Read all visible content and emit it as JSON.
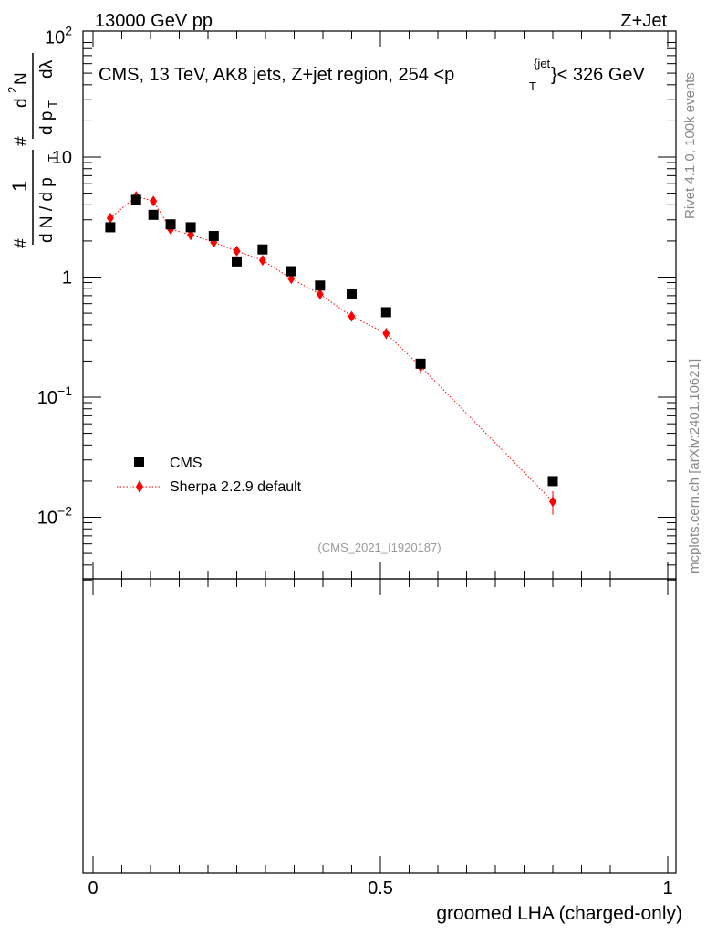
{
  "header": {
    "left": "13000 GeV pp",
    "right": "Z+Jet"
  },
  "side": {
    "rivet": "Rivet 4.1.0,  100k events",
    "mcplots": "mcplots.cern.ch [arXiv:2401.10621]"
  },
  "chart_data": {
    "type": "scatter",
    "title": "CMS, 13 TeV, AK8 jets, Z+jet region, 254 <p_T^{jet}< 326 GeV",
    "title_parts": {
      "prefix": "CMS, 13 TeV, AK8 jets, Z+jet region, 254 <p",
      "sup": "{jet",
      "sub": "T",
      "suffix": "}< 326 GeV"
    },
    "xlabel": "groomed LHA (charged-only)",
    "ylabel": "1/(dN/dp_T) d²N/(dp_T dλ)",
    "ylabel_parts": {
      "hash": "#",
      "num1": "1",
      "den1": "d N / d p",
      "den1_sub": "T",
      "hash2": "#",
      "num2": "d",
      "num2_sup": "2",
      "num2_tail": "N",
      "den2": "d p",
      "den2_sub": "T",
      "den2_tail": "dλ"
    },
    "xlim": [
      0,
      1
    ],
    "ylim": [
      0.003,
      100
    ],
    "yscale": "log",
    "x_ticks": [
      {
        "value": 0,
        "label": "0"
      },
      {
        "value": 0.5,
        "label": "0.5"
      },
      {
        "value": 1,
        "label": "1"
      }
    ],
    "y_ticks": [
      {
        "value": 0.01,
        "base": "10",
        "exp": "−2"
      },
      {
        "value": 0.1,
        "base": "10",
        "exp": "−1"
      },
      {
        "value": 1,
        "base": "1",
        "exp": ""
      },
      {
        "value": 10,
        "base": "10",
        "exp": ""
      },
      {
        "value": 100,
        "base": "10",
        "exp": "2"
      }
    ],
    "legend_position": "lower-left",
    "watermark": "(CMS_2021_I1920187)",
    "series": [
      {
        "name": "CMS",
        "marker": "square",
        "color": "#000000",
        "x": [
          0.03,
          0.075,
          0.105,
          0.135,
          0.17,
          0.21,
          0.25,
          0.295,
          0.345,
          0.395,
          0.45,
          0.51,
          0.57,
          0.8
        ],
        "y": [
          2.6,
          4.4,
          3.3,
          2.75,
          2.6,
          2.2,
          1.35,
          1.7,
          1.12,
          0.85,
          0.72,
          0.51,
          0.19,
          0.02
        ],
        "err": [
          0,
          0,
          0,
          0,
          0,
          0,
          0,
          0,
          0,
          0,
          0,
          0,
          0,
          0
        ]
      },
      {
        "name": "Sherpa 2.2.9 default",
        "marker": "diamond",
        "line": "dotted",
        "color": "#ff0000",
        "x": [
          0.03,
          0.075,
          0.105,
          0.135,
          0.17,
          0.21,
          0.25,
          0.295,
          0.345,
          0.395,
          0.45,
          0.51,
          0.57,
          0.8
        ],
        "y": [
          3.1,
          4.7,
          4.3,
          2.5,
          2.25,
          1.95,
          1.65,
          1.38,
          0.97,
          0.72,
          0.47,
          0.34,
          0.18,
          0.0135
        ],
        "err": [
          0.1,
          0.15,
          0.15,
          0.1,
          0.08,
          0.08,
          0.07,
          0.06,
          0.05,
          0.05,
          0.04,
          0.035,
          0.025,
          0.003
        ]
      }
    ]
  }
}
